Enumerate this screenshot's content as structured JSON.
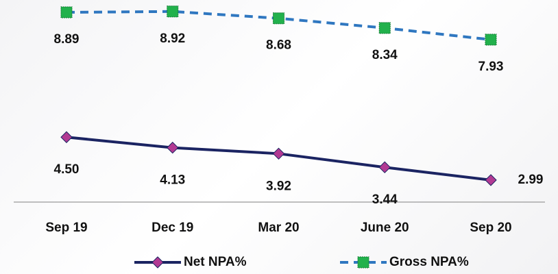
{
  "chart_data": {
    "type": "line",
    "categories": [
      "Sep 19",
      "Dec 19",
      "Mar 20",
      "June 20",
      "Sep 20"
    ],
    "series": [
      {
        "name": "Net NPA%",
        "color": "#1b2462",
        "marker_color": "#b23a93",
        "marker": "diamond",
        "dash": false,
        "values": [
          4.5,
          4.13,
          3.92,
          3.44,
          2.99
        ],
        "value_labels": [
          "4.50",
          "4.13",
          "3.92",
          "3.44",
          "2.99"
        ]
      },
      {
        "name": "Gross NPA%",
        "color": "#2f77c0",
        "marker_color": "#22b14c",
        "marker": "square",
        "dash": true,
        "values": [
          8.89,
          8.92,
          8.68,
          8.34,
          7.93
        ],
        "value_labels": [
          "8.89",
          "8.92",
          "8.68",
          "8.34",
          "7.93"
        ]
      }
    ],
    "ylim": [
      2,
      9.3
    ],
    "legend": "bottom"
  }
}
